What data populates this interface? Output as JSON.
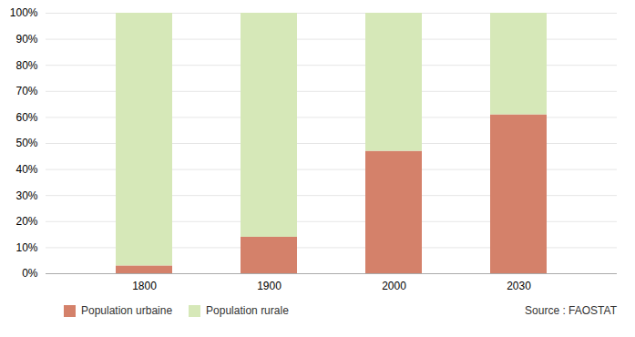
{
  "chart_data": {
    "type": "bar",
    "stacked": true,
    "categories": [
      "1800",
      "1900",
      "2000",
      "2030"
    ],
    "series": [
      {
        "name": "Population urbaine",
        "color": "#d4816a",
        "values": [
          3,
          14,
          47,
          61
        ]
      },
      {
        "name": "Population rurale",
        "color": "#d6e8b8",
        "values": [
          97,
          86,
          53,
          39
        ]
      }
    ],
    "ylim": [
      0,
      100
    ],
    "yticks": [
      {
        "value": 0,
        "label": "0%"
      },
      {
        "value": 10,
        "label": "10%"
      },
      {
        "value": 20,
        "label": "20%"
      },
      {
        "value": 30,
        "label": "30%"
      },
      {
        "value": 40,
        "label": "40%"
      },
      {
        "value": 50,
        "label": "50%"
      },
      {
        "value": 60,
        "label": "60%"
      },
      {
        "value": 70,
        "label": "70%"
      },
      {
        "value": 80,
        "label": "80%"
      },
      {
        "value": 90,
        "label": "90%"
      },
      {
        "value": 100,
        "label": "100%"
      }
    ],
    "grid": true,
    "legend": "bottom",
    "annotations": [
      "Source : FAOSTAT"
    ]
  }
}
